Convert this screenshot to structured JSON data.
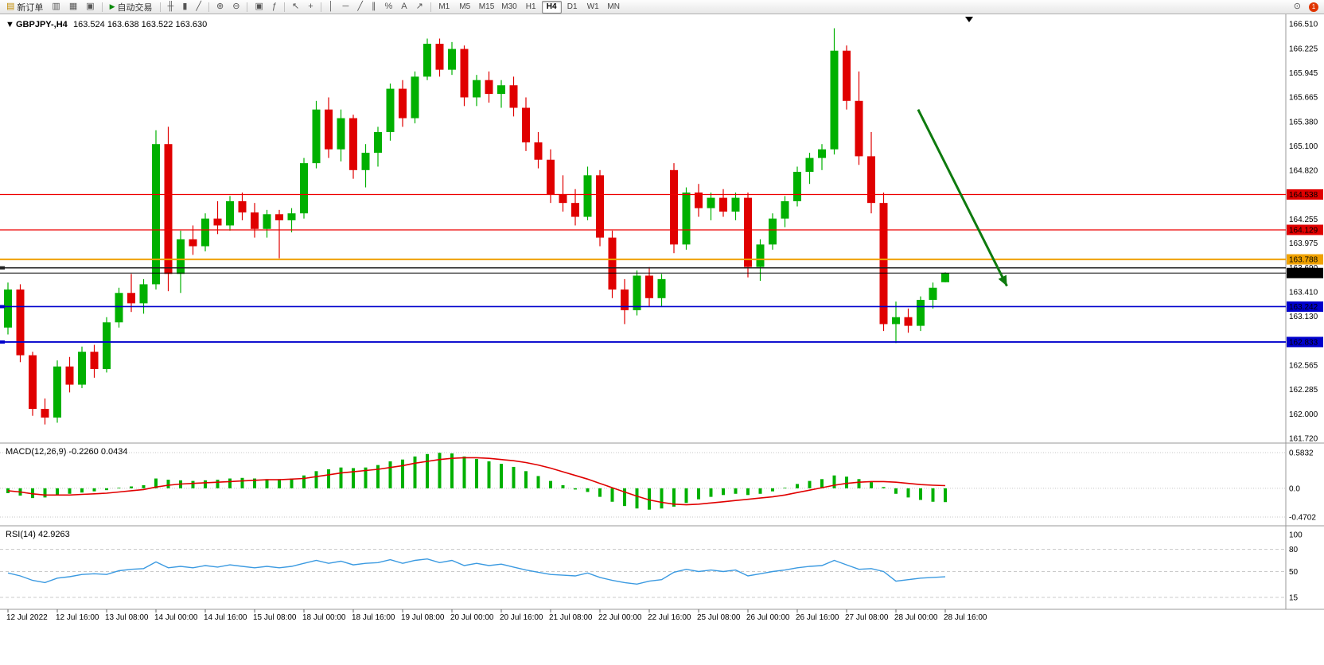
{
  "toolbar": {
    "new_order": "新订单",
    "autotrading": "自动交易",
    "timeframes": [
      "M1",
      "M5",
      "M15",
      "M30",
      "H1",
      "H4",
      "D1",
      "W1",
      "MN"
    ],
    "active_timeframe": "H4",
    "notification_count": "1"
  },
  "icons": {
    "new_order": "▤",
    "charts": "▥",
    "profile": "▦",
    "tile": "▣",
    "play": "▶",
    "bars": "╫",
    "candles": "▮",
    "line_chart": "╱",
    "zoom_in": "⊕",
    "zoom_out": "⊖",
    "indicators": "ƒ",
    "cursor": "↖",
    "crosshair": "+",
    "vline": "│",
    "hline": "─",
    "trendline": "╱",
    "channel": "∥",
    "fibo": "%",
    "text": "A",
    "arrows": "↗",
    "search": "⊙",
    "dropdown": "▼"
  },
  "chart": {
    "symbol": "GBPJPY-,H4",
    "ohlc": "163.524 163.638 163.522 163.630",
    "dropdown_glyph": "▼"
  },
  "price_axis": {
    "ticks": [
      "166.510",
      "166.225",
      "165.945",
      "165.665",
      "165.380",
      "165.100",
      "164.820",
      "164.255",
      "163.975",
      "163.690",
      "163.410",
      "163.130",
      "162.565",
      "162.285",
      "162.000",
      "161.720"
    ],
    "badges": [
      {
        "value": "164.538",
        "price": 164.538,
        "color": "#e00000"
      },
      {
        "value": "164.129",
        "price": 164.129,
        "color": "#e00000"
      },
      {
        "value": "163.788",
        "price": 163.788,
        "color": "#f0a200"
      },
      {
        "value": "163.630",
        "price": 163.63,
        "color": "#000000"
      },
      {
        "value": "163.242",
        "price": 163.242,
        "color": "#0000cc"
      },
      {
        "value": "162.833",
        "price": 162.833,
        "color": "#0000cc"
      }
    ]
  },
  "levels": [
    {
      "price": 164.538,
      "color": "#ee0000",
      "width": 1.3,
      "anchor": false
    },
    {
      "price": 164.129,
      "color": "#ee0000",
      "width": 1.3,
      "anchor": false
    },
    {
      "price": 163.788,
      "color": "#f0a200",
      "width": 2,
      "anchor": false
    },
    {
      "price": 163.69,
      "color": "#222222",
      "width": 1.5,
      "anchor": true
    },
    {
      "price": 163.63,
      "color": "#000000",
      "width": 1,
      "anchor": false
    },
    {
      "price": 163.242,
      "color": "#0000cc",
      "width": 1.6,
      "anchor": true
    },
    {
      "price": 162.833,
      "color": "#0000cc",
      "width": 1.8,
      "anchor": true
    }
  ],
  "annotation_arrow": {
    "from_index": 73.8,
    "from_price": 165.52,
    "to_index": 81.0,
    "to_price": 163.48,
    "color": "#0e7a0e"
  },
  "macd_panel": {
    "label": "MACD(12,26,9) -0.2260 0.0434",
    "scale": [
      "0.5832",
      "0.0",
      "-0.4702"
    ],
    "scale_values": [
      0.5832,
      0.0,
      -0.4702
    ]
  },
  "rsi_panel": {
    "label": "RSI(14) 42.9263",
    "scale": [
      "100",
      "80",
      "50",
      "15"
    ],
    "scale_values": [
      100,
      80,
      50,
      15
    ]
  },
  "time_axis": [
    "12 Jul 2022",
    "12 Jul 16:00",
    "13 Jul 08:00",
    "14 Jul 00:00",
    "14 Jul 16:00",
    "15 Jul 08:00",
    "18 Jul 00:00",
    "18 Jul 16:00",
    "19 Jul 08:00",
    "20 Jul 00:00",
    "20 Jul 16:00",
    "21 Jul 08:00",
    "22 Jul 00:00",
    "22 Jul 16:00",
    "25 Jul 08:00",
    "26 Jul 00:00",
    "26 Jul 16:00",
    "27 Jul 08:00",
    "28 Jul 00:00",
    "28 Jul 16:00"
  ],
  "chart_data": {
    "type": "candlestick",
    "symbol": "GBPJPY-",
    "timeframe": "H4",
    "title": "GBPJPY-,H4 163.524 163.638 163.522 163.630",
    "up_color": "#00b000",
    "down_color": "#e00000",
    "price_range": [
      161.72,
      166.51
    ],
    "candles_ohlc": [
      [
        163.0,
        163.52,
        162.92,
        163.44
      ],
      [
        163.44,
        163.5,
        162.6,
        162.68
      ],
      [
        162.68,
        162.72,
        161.98,
        162.06
      ],
      [
        162.06,
        162.18,
        161.88,
        161.96
      ],
      [
        161.96,
        162.62,
        161.9,
        162.55
      ],
      [
        162.55,
        162.66,
        162.25,
        162.34
      ],
      [
        162.34,
        162.78,
        162.3,
        162.72
      ],
      [
        162.72,
        162.8,
        162.42,
        162.52
      ],
      [
        162.52,
        163.12,
        162.48,
        163.06
      ],
      [
        163.06,
        163.46,
        163.0,
        163.4
      ],
      [
        163.4,
        163.62,
        163.18,
        163.28
      ],
      [
        163.28,
        163.56,
        163.16,
        163.5
      ],
      [
        163.5,
        165.28,
        163.44,
        165.12
      ],
      [
        165.12,
        165.32,
        163.42,
        163.62
      ],
      [
        163.62,
        164.12,
        163.4,
        164.02
      ],
      [
        164.02,
        164.18,
        163.84,
        163.94
      ],
      [
        163.94,
        164.32,
        163.88,
        164.26
      ],
      [
        164.26,
        164.46,
        164.08,
        164.18
      ],
      [
        164.18,
        164.52,
        164.12,
        164.46
      ],
      [
        164.46,
        164.56,
        164.24,
        164.33
      ],
      [
        164.33,
        164.44,
        164.04,
        164.14
      ],
      [
        164.14,
        164.36,
        164.04,
        164.31
      ],
      [
        164.31,
        164.36,
        163.8,
        164.24
      ],
      [
        164.24,
        164.38,
        164.1,
        164.32
      ],
      [
        164.32,
        164.96,
        164.26,
        164.9
      ],
      [
        164.9,
        165.62,
        164.84,
        165.52
      ],
      [
        165.52,
        165.66,
        164.96,
        165.06
      ],
      [
        165.06,
        165.52,
        164.92,
        165.42
      ],
      [
        165.42,
        165.46,
        164.72,
        164.82
      ],
      [
        164.82,
        165.12,
        164.62,
        165.02
      ],
      [
        165.02,
        165.32,
        164.86,
        165.26
      ],
      [
        165.26,
        165.82,
        165.16,
        165.76
      ],
      [
        165.76,
        165.86,
        165.32,
        165.42
      ],
      [
        165.42,
        165.96,
        165.36,
        165.9
      ],
      [
        165.9,
        166.34,
        165.86,
        166.28
      ],
      [
        166.28,
        166.34,
        165.9,
        165.98
      ],
      [
        165.98,
        166.3,
        165.92,
        166.22
      ],
      [
        166.22,
        166.26,
        165.56,
        165.66
      ],
      [
        165.66,
        165.92,
        165.56,
        165.86
      ],
      [
        165.86,
        165.96,
        165.6,
        165.7
      ],
      [
        165.7,
        165.86,
        165.54,
        165.8
      ],
      [
        165.8,
        165.9,
        165.44,
        165.54
      ],
      [
        165.54,
        165.66,
        165.04,
        165.14
      ],
      [
        165.14,
        165.26,
        164.84,
        164.94
      ],
      [
        164.94,
        165.06,
        164.44,
        164.54
      ],
      [
        164.54,
        164.76,
        164.34,
        164.44
      ],
      [
        164.44,
        164.6,
        164.18,
        164.28
      ],
      [
        164.28,
        164.86,
        164.24,
        164.76
      ],
      [
        164.76,
        164.82,
        163.94,
        164.04
      ],
      [
        164.04,
        164.12,
        163.34,
        163.44
      ],
      [
        163.44,
        163.56,
        163.04,
        163.2
      ],
      [
        163.2,
        163.66,
        163.14,
        163.6
      ],
      [
        163.6,
        163.7,
        163.24,
        163.34
      ],
      [
        163.34,
        163.62,
        163.24,
        163.56
      ],
      [
        164.82,
        164.9,
        163.86,
        163.96
      ],
      [
        163.96,
        164.62,
        163.9,
        164.56
      ],
      [
        164.56,
        164.66,
        164.28,
        164.38
      ],
      [
        164.38,
        164.56,
        164.24,
        164.5
      ],
      [
        164.5,
        164.6,
        164.28,
        164.34
      ],
      [
        164.34,
        164.56,
        164.24,
        164.5
      ],
      [
        164.5,
        164.56,
        163.58,
        163.7
      ],
      [
        163.7,
        164.02,
        163.54,
        163.96
      ],
      [
        163.96,
        164.32,
        163.9,
        164.26
      ],
      [
        164.26,
        164.52,
        164.16,
        164.46
      ],
      [
        164.46,
        164.86,
        164.4,
        164.8
      ],
      [
        164.8,
        165.02,
        164.66,
        164.96
      ],
      [
        164.96,
        165.12,
        164.82,
        165.06
      ],
      [
        165.06,
        166.46,
        165.0,
        166.2
      ],
      [
        166.2,
        166.26,
        165.52,
        165.62
      ],
      [
        165.62,
        165.96,
        164.88,
        164.98
      ],
      [
        164.98,
        165.26,
        164.32,
        164.44
      ],
      [
        164.44,
        164.56,
        162.96,
        163.04
      ],
      [
        163.04,
        163.3,
        162.82,
        163.12
      ],
      [
        163.12,
        163.22,
        162.94,
        163.02
      ],
      [
        163.02,
        163.36,
        162.96,
        163.32
      ],
      [
        163.32,
        163.52,
        163.22,
        163.46
      ],
      [
        163.524,
        163.638,
        163.522,
        163.63
      ]
    ],
    "macd": {
      "type": "bar+line",
      "range": [
        -0.4702,
        0.5832
      ],
      "histogram": [
        -0.08,
        -0.12,
        -0.16,
        -0.15,
        -0.11,
        -0.09,
        -0.07,
        -0.05,
        -0.03,
        0.01,
        0.03,
        0.05,
        0.16,
        0.14,
        0.13,
        0.12,
        0.13,
        0.14,
        0.16,
        0.17,
        0.16,
        0.15,
        0.15,
        0.16,
        0.21,
        0.28,
        0.31,
        0.34,
        0.33,
        0.34,
        0.38,
        0.44,
        0.47,
        0.52,
        0.56,
        0.58,
        0.57,
        0.52,
        0.48,
        0.44,
        0.4,
        0.35,
        0.28,
        0.2,
        0.12,
        0.05,
        -0.02,
        -0.06,
        -0.14,
        -0.22,
        -0.29,
        -0.33,
        -0.35,
        -0.33,
        -0.3,
        -0.24,
        -0.18,
        -0.14,
        -0.11,
        -0.09,
        -0.11,
        -0.09,
        -0.05,
        0.01,
        0.07,
        0.12,
        0.15,
        0.21,
        0.19,
        0.15,
        0.1,
        0.02,
        -0.09,
        -0.15,
        -0.19,
        -0.22,
        -0.226
      ],
      "signal": [
        -0.04,
        -0.06,
        -0.09,
        -0.11,
        -0.11,
        -0.11,
        -0.1,
        -0.09,
        -0.08,
        -0.06,
        -0.04,
        -0.02,
        0.02,
        0.05,
        0.07,
        0.08,
        0.09,
        0.1,
        0.11,
        0.12,
        0.13,
        0.14,
        0.14,
        0.15,
        0.16,
        0.19,
        0.22,
        0.25,
        0.27,
        0.29,
        0.31,
        0.34,
        0.37,
        0.41,
        0.44,
        0.47,
        0.49,
        0.5,
        0.5,
        0.49,
        0.47,
        0.45,
        0.42,
        0.38,
        0.33,
        0.27,
        0.21,
        0.15,
        0.08,
        0.01,
        -0.06,
        -0.13,
        -0.19,
        -0.23,
        -0.26,
        -0.27,
        -0.26,
        -0.24,
        -0.22,
        -0.2,
        -0.18,
        -0.16,
        -0.14,
        -0.11,
        -0.07,
        -0.03,
        0.01,
        0.05,
        0.08,
        0.1,
        0.11,
        0.11,
        0.1,
        0.08,
        0.06,
        0.05,
        0.0434
      ],
      "histogram_color": "#00b000",
      "signal_color": "#e00000"
    },
    "rsi": {
      "type": "line",
      "range": [
        0,
        100
      ],
      "color": "#3b9ae1",
      "values": [
        48,
        44,
        38,
        35,
        41,
        43,
        46,
        47,
        46,
        51,
        53,
        54,
        63,
        55,
        57,
        55,
        58,
        56,
        59,
        57,
        55,
        57,
        55,
        57,
        61,
        65,
        61,
        64,
        59,
        61,
        62,
        66,
        61,
        65,
        67,
        62,
        65,
        58,
        61,
        58,
        60,
        56,
        52,
        49,
        46,
        45,
        44,
        48,
        42,
        38,
        35,
        33,
        37,
        39,
        49,
        53,
        50,
        52,
        50,
        52,
        44,
        47,
        50,
        52,
        55,
        57,
        58,
        65,
        59,
        53,
        54,
        50,
        37,
        39,
        41,
        42,
        42.9
      ]
    }
  }
}
